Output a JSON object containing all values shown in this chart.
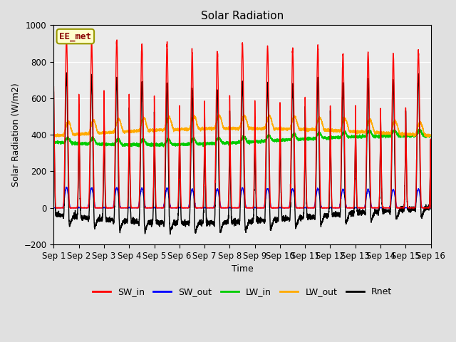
{
  "title": "Solar Radiation",
  "ylabel": "Solar Radiation (W/m2)",
  "xlabel": "Time",
  "ylim": [
    -200,
    1000
  ],
  "n_days": 15,
  "series": {
    "SW_in": {
      "color": "#ff0000",
      "lw": 1.0
    },
    "SW_out": {
      "color": "#0000ff",
      "lw": 1.0
    },
    "LW_in": {
      "color": "#00cc00",
      "lw": 1.0
    },
    "LW_out": {
      "color": "#ffaa00",
      "lw": 1.0
    },
    "Rnet": {
      "color": "#000000",
      "lw": 1.0
    }
  },
  "bg_color": "#e0e0e0",
  "ax_bg_color": "#ebebeb",
  "label_box": {
    "text": "EE_met",
    "facecolor": "#ffffcc",
    "edgecolor": "#999900",
    "textcolor": "#880000"
  },
  "tick_labels": [
    "Sep 1",
    "Sep 2",
    "Sep 3",
    "Sep 4",
    "Sep 5",
    "Sep 6",
    "Sep 7",
    "Sep 8",
    "Sep 9",
    "Sep 10",
    "Sep 11",
    "Sep 12",
    "Sep 13",
    "Sep 14",
    "Sep 15",
    "Sep 16"
  ],
  "yticks": [
    -200,
    0,
    200,
    400,
    600,
    800,
    1000
  ]
}
